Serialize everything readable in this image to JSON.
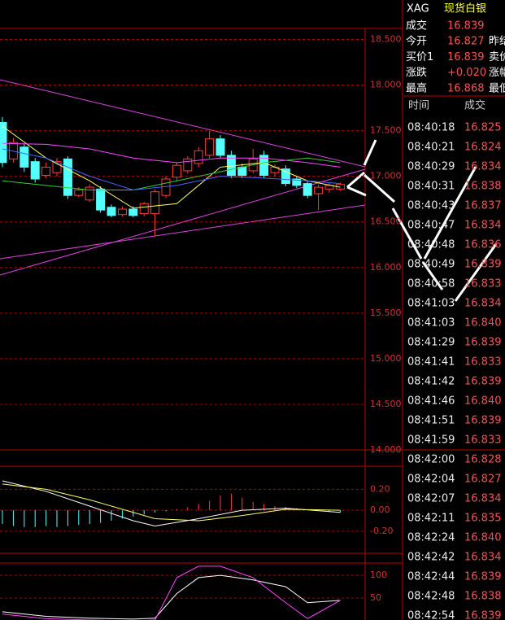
{
  "header": {
    "symbol": "XAG",
    "name": "现货白银"
  },
  "quote": [
    {
      "label": "成交",
      "value": "16.839"
    },
    {
      "label": "今开",
      "value": "16.827",
      "extra": "昨结"
    },
    {
      "label": "买价1",
      "value": "16.839",
      "extra": "卖价"
    },
    {
      "label": "涨跌",
      "value": "+0.020",
      "extra": "涨幅"
    },
    {
      "label": "最高",
      "value": "16.868",
      "extra": "最低"
    }
  ],
  "ticks": {
    "header": [
      "时间",
      "成交"
    ],
    "rows": [
      [
        "08:40:18",
        "16.825"
      ],
      [
        "08:40:21",
        "16.824"
      ],
      [
        "08:40:29",
        "16.834"
      ],
      [
        "08:40:31",
        "16.838"
      ],
      [
        "08:40:43",
        "16.837"
      ],
      [
        "08:40:47",
        "16.834"
      ],
      [
        "08:40:48",
        "16.836"
      ],
      [
        "08:40:49",
        "16.839"
      ],
      [
        "08:40:58",
        "16.833"
      ],
      [
        "08:41:03",
        "16.834"
      ],
      [
        "08:41:03",
        "16.840"
      ],
      [
        "08:41:29",
        "16.839"
      ],
      [
        "08:41:41",
        "16.833"
      ],
      [
        "08:41:42",
        "16.839"
      ],
      [
        "08:41:46",
        "16.840"
      ],
      [
        "08:41:51",
        "16.839"
      ],
      [
        "08:41:59",
        "16.833"
      ],
      [
        "08:42:00",
        "16.828"
      ],
      [
        "08:42:04",
        "16.827"
      ],
      [
        "08:42:07",
        "16.834"
      ],
      [
        "08:42:11",
        "16.835"
      ],
      [
        "08:42:24",
        "16.840"
      ],
      [
        "08:42:42",
        "16.834"
      ],
      [
        "08:42:44",
        "16.839"
      ],
      [
        "08:42:48",
        "16.838"
      ],
      [
        "08:42:54",
        "16.839"
      ]
    ]
  },
  "chart_data": [
    {
      "type": "candlestick",
      "ylim": [
        14,
        18.62
      ],
      "up_color": "#ff3b3b",
      "down_color": "#54ffff",
      "yticks": [
        {
          "value": 18.5,
          "label": "18.500"
        },
        {
          "value": 18,
          "label": "18.000"
        },
        {
          "value": 17.5,
          "label": "17.500"
        },
        {
          "value": 17,
          "label": "17.000"
        },
        {
          "value": 16.5,
          "label": "16.500"
        },
        {
          "value": 16,
          "label": "16.000"
        },
        {
          "value": 15.5,
          "label": "15.500"
        },
        {
          "value": 15,
          "label": "15.000"
        },
        {
          "value": 14.5,
          "label": "14.500"
        },
        {
          "value": 14,
          "label": "14.000"
        }
      ],
      "open": [
        17.59,
        17.19,
        17.32,
        17.16,
        17.01,
        17.04,
        17.19,
        16.79,
        16.74,
        16.86,
        16.66,
        16.58,
        16.64,
        16.59,
        16.59,
        16.79,
        16.99,
        17.06,
        17.14,
        17.23,
        17.41,
        17.23,
        17.1,
        17.06,
        17.23,
        17.04,
        17.08,
        16.97,
        16.92,
        16.81,
        16.86,
        16.86
      ],
      "close": [
        17.15,
        17.37,
        17.1,
        16.97,
        17.1,
        17.16,
        16.79,
        16.85,
        16.88,
        16.63,
        16.57,
        16.64,
        16.57,
        16.7,
        16.83,
        16.97,
        17.12,
        17.19,
        17.28,
        17.41,
        17.23,
        17.01,
        17.01,
        17.19,
        17.01,
        17.1,
        16.92,
        16.9,
        16.79,
        16.88,
        16.9,
        16.91
      ],
      "high": [
        17.65,
        17.42,
        17.36,
        17.2,
        17.15,
        17.2,
        17.22,
        16.88,
        16.91,
        16.89,
        16.69,
        16.67,
        16.67,
        16.72,
        16.86,
        17,
        17.15,
        17.22,
        17.32,
        17.5,
        17.45,
        17.28,
        17.14,
        17.3,
        17.28,
        17.13,
        17.12,
        17,
        16.95,
        16.91,
        16.93,
        16.93
      ],
      "low": [
        17.1,
        17.15,
        17.05,
        16.93,
        16.98,
        17,
        16.75,
        16.77,
        16.72,
        16.6,
        16.55,
        16.56,
        16.55,
        16.56,
        16.34,
        16.76,
        16.95,
        17.03,
        17.1,
        17.2,
        17.2,
        16.98,
        16.98,
        17.03,
        16.98,
        17,
        16.89,
        16.87,
        16.76,
        16.63,
        16.82,
        16.84
      ],
      "lines": [
        {
          "color": "#ffff66",
          "x": [
            0,
            4,
            8,
            12,
            16,
            20,
            24,
            28,
            31
          ],
          "values": [
            17.55,
            17.2,
            16.95,
            16.65,
            16.7,
            17.1,
            17.15,
            16.95,
            16.88
          ]
        },
        {
          "color": "#33cc33",
          "x": [
            0,
            4,
            8,
            12,
            16,
            20,
            24,
            28,
            31
          ],
          "values": [
            16.95,
            16.9,
            16.85,
            16.85,
            16.95,
            17.05,
            17.15,
            17.2,
            17.15
          ]
        },
        {
          "color": "#4466ff",
          "x": [
            0,
            4,
            8,
            12,
            16,
            20,
            24,
            28,
            31
          ],
          "values": [
            17.3,
            17.2,
            17,
            16.85,
            16.9,
            17,
            16.98,
            16.95,
            16.92
          ]
        },
        {
          "color": "#ff44ff",
          "x": [
            0,
            4,
            8,
            12,
            16,
            20,
            24,
            28,
            31
          ],
          "values": [
            17.36,
            17.35,
            17.3,
            17.2,
            17.15,
            17.2,
            17.2,
            17.15,
            17.1
          ]
        }
      ]
    },
    {
      "type": "macd",
      "ylim": [
        -0.41,
        0.42
      ],
      "yticks": [
        {
          "value": 0.2,
          "label": "0.20"
        },
        {
          "value": 0,
          "label": "0.00"
        },
        {
          "value": -0.2,
          "label": "-0.20"
        }
      ],
      "values": [
        -0.13,
        -0.15,
        -0.16,
        -0.16,
        -0.15,
        -0.16,
        -0.15,
        -0.14,
        -0.13,
        -0.12,
        -0.1,
        -0.08,
        -0.06,
        -0.04,
        -0.02,
        -0.01,
        0.01,
        0.03,
        0.06,
        0.09,
        0.14,
        0.16,
        0.12,
        0.08,
        0.06,
        0.04,
        0.03,
        0.02,
        0.01,
        0.005,
        -0.01,
        -0.02
      ],
      "lines": [
        {
          "color": "#ffffff",
          "x": [
            0,
            4,
            8,
            12,
            14,
            18,
            22,
            26,
            31
          ],
          "values": [
            0.28,
            0.18,
            0.04,
            -0.1,
            -0.15,
            -0.08,
            0,
            0.02,
            -0.02
          ]
        },
        {
          "color": "#ffff66",
          "x": [
            0,
            4,
            8,
            12,
            14,
            18,
            22,
            26,
            31
          ],
          "values": [
            0.25,
            0.2,
            0.1,
            -0.02,
            -0.08,
            -0.1,
            -0.05,
            0.01,
            0.0
          ]
        }
      ]
    },
    {
      "type": "kdj",
      "ylim": [
        2,
        127
      ],
      "yticks": [
        100,
        50
      ],
      "lines": [
        {
          "color": "#ffffff",
          "x": [
            0,
            4,
            8,
            12,
            14,
            16,
            18,
            20,
            23,
            26,
            28,
            31
          ],
          "values": [
            20,
            10,
            6,
            4,
            6,
            60,
            95,
            100,
            90,
            75,
            40,
            45
          ]
        },
        {
          "color": "#ff44ff",
          "x": [
            0,
            4,
            8,
            12,
            14,
            16,
            18,
            20,
            23,
            26,
            28,
            31
          ],
          "values": [
            15,
            5,
            2,
            0,
            2,
            95,
            120,
            120,
            95,
            40,
            5,
            45
          ]
        }
      ]
    }
  ]
}
